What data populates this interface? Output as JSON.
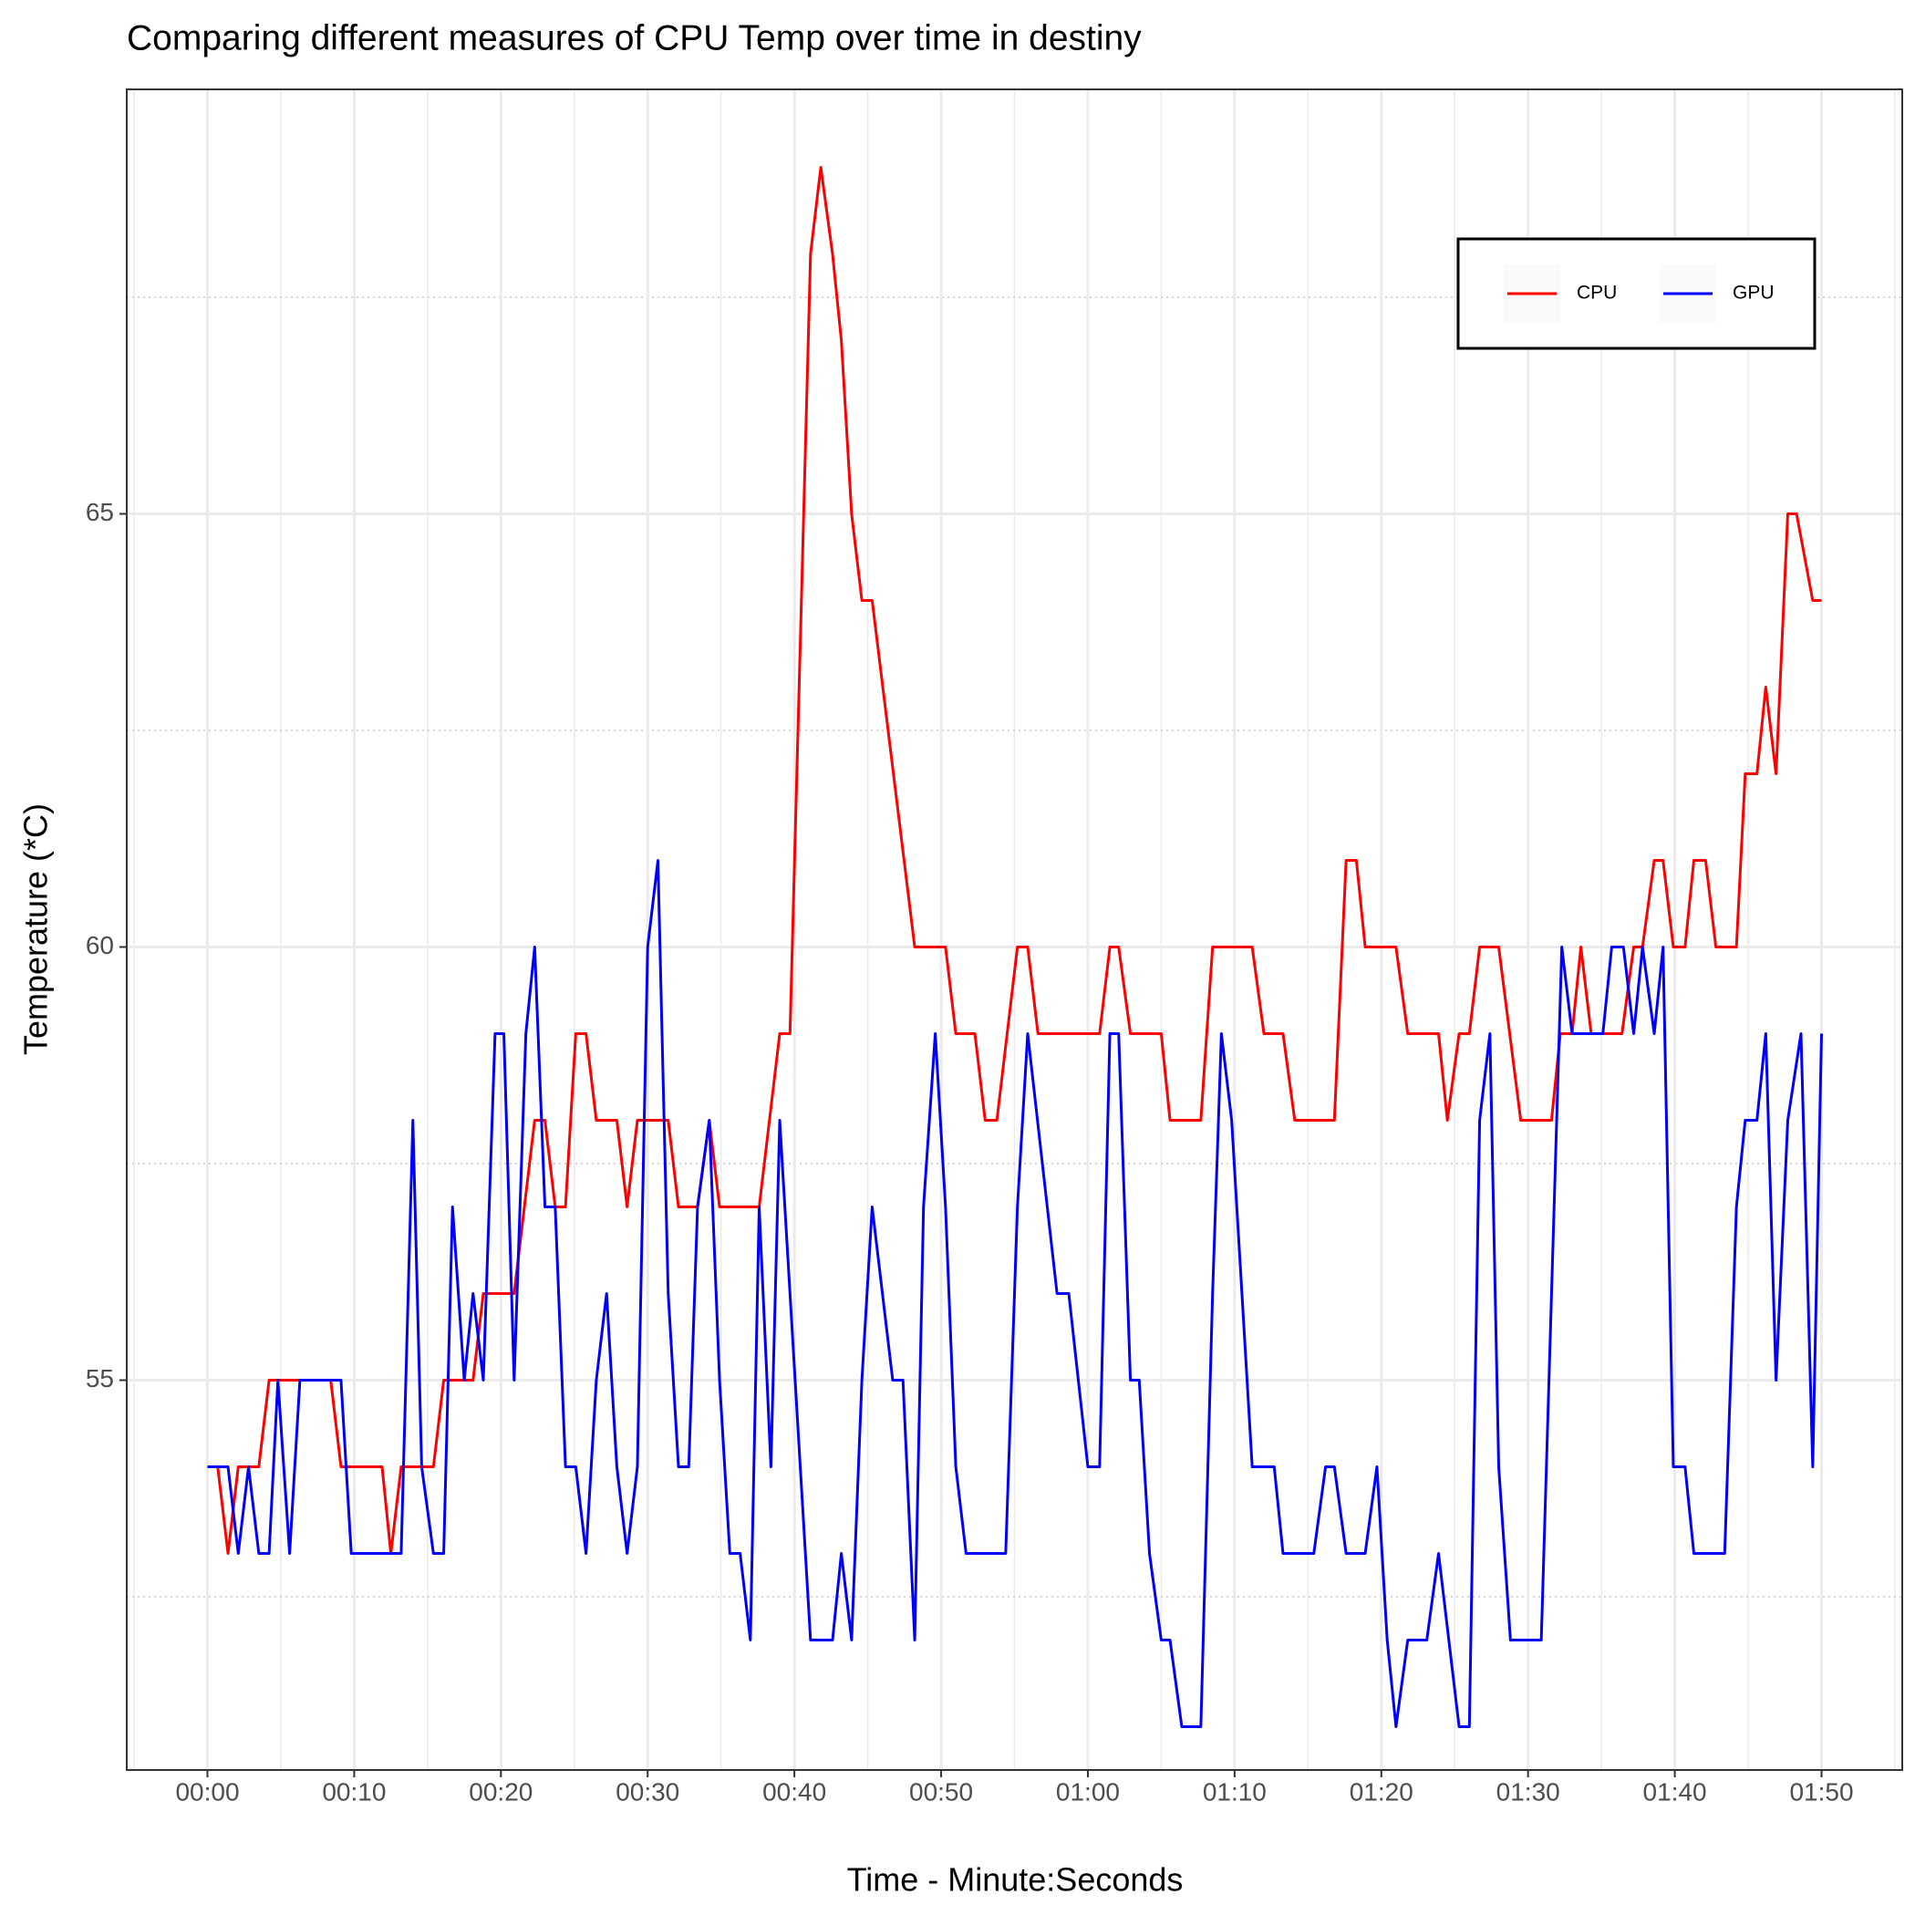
{
  "chart_data": {
    "type": "line",
    "title": "Comparing different measures of CPU Temp over time in destiny",
    "x_label": "Time - Minute:Seconds",
    "y_label": "Temperature (*C)",
    "xlim": [
      -5.5,
      115.5
    ],
    "ylim": [
      50.5,
      69.9
    ],
    "xticks": [
      {
        "value": 0,
        "label": "00:00"
      },
      {
        "value": 10,
        "label": "00:10"
      },
      {
        "value": 20,
        "label": "00:20"
      },
      {
        "value": 30,
        "label": "00:30"
      },
      {
        "value": 40,
        "label": "00:40"
      },
      {
        "value": 50,
        "label": "00:50"
      },
      {
        "value": 60,
        "label": "01:00"
      },
      {
        "value": 70,
        "label": "01:10"
      },
      {
        "value": 80,
        "label": "01:20"
      },
      {
        "value": 90,
        "label": "01:30"
      },
      {
        "value": 100,
        "label": "01:40"
      },
      {
        "value": 110,
        "label": "01:50"
      }
    ],
    "yticks": [
      55,
      60,
      65
    ],
    "grid": true,
    "legend_position": "top-right",
    "series": [
      {
        "name": "CPU",
        "color": "#ff0000",
        "x": [
          0,
          0.7,
          1.4,
          2.1,
          3.5,
          4.2,
          8.4,
          9.1,
          11.9,
          12.5,
          13.2,
          15.4,
          16.1,
          18.1,
          18.8,
          20.9,
          22.3,
          23.0,
          23.7,
          24.4,
          25.1,
          25.8,
          26.5,
          27.9,
          28.6,
          29.3,
          31.4,
          32.1,
          33.4,
          34.2,
          34.9,
          37.6,
          39.0,
          39.7,
          41.1,
          41.8,
          42.6,
          43.2,
          43.9,
          44.6,
          45.3,
          48.2,
          50.3,
          51.0,
          52.3,
          53.0,
          53.8,
          55.2,
          55.9,
          56.6,
          60.8,
          61.5,
          62.1,
          62.9,
          65.0,
          65.6,
          67.7,
          68.5,
          71.2,
          72.0,
          73.3,
          74.1,
          76.8,
          77.6,
          78.3,
          78.9,
          81.0,
          81.8,
          83.9,
          84.5,
          85.3,
          86.0,
          86.7,
          88.0,
          89.5,
          91.6,
          92.2,
          93.0,
          93.6,
          94.3,
          96.4,
          97.2,
          97.8,
          98.6,
          99.2,
          99.9,
          100.7,
          101.3,
          102.1,
          102.8,
          104.2,
          104.8,
          105.6,
          106.2,
          106.9,
          107.7,
          108.3,
          109.4,
          110
        ],
        "values": [
          54,
          54,
          53,
          54,
          54,
          55,
          55,
          54,
          54,
          53,
          54,
          54,
          55,
          55,
          56,
          56,
          58,
          58,
          57,
          57,
          59,
          59,
          58,
          58,
          57,
          58,
          58,
          57,
          57,
          58,
          57,
          57,
          59,
          59,
          68,
          69,
          68,
          67,
          65,
          64,
          64,
          60,
          60,
          59,
          59,
          58,
          58,
          60,
          60,
          59,
          59,
          60,
          60,
          59,
          59,
          58,
          58,
          60,
          60,
          59,
          59,
          58,
          58,
          61,
          61,
          60,
          60,
          59,
          59,
          58,
          59,
          59,
          60,
          60,
          58,
          58,
          59,
          59,
          60,
          59,
          59,
          60,
          60,
          61,
          61,
          60,
          60,
          61,
          61,
          60,
          60,
          62,
          62,
          63,
          62,
          65,
          65,
          64,
          64
        ]
      },
      {
        "name": "GPU",
        "color": "#0000ff",
        "x": [
          0,
          1.4,
          2.1,
          2.8,
          3.5,
          4.2,
          4.8,
          5.6,
          6.3,
          9.1,
          9.8,
          13.2,
          14.0,
          14.6,
          15.4,
          16.1,
          16.7,
          17.5,
          18.1,
          18.8,
          19.6,
          20.2,
          20.9,
          21.7,
          22.3,
          23.0,
          23.7,
          24.4,
          25.1,
          25.8,
          26.5,
          27.2,
          27.9,
          28.6,
          29.3,
          30.0,
          30.7,
          31.4,
          32.1,
          32.8,
          33.4,
          34.2,
          34.9,
          35.6,
          36.3,
          37.0,
          37.6,
          38.4,
          39.0,
          41.1,
          42.6,
          43.2,
          43.9,
          44.6,
          45.3,
          46.7,
          47.4,
          48.2,
          48.8,
          49.6,
          50.3,
          51.0,
          51.7,
          54.4,
          55.2,
          55.9,
          57.9,
          58.7,
          60.0,
          60.8,
          61.5,
          62.1,
          62.9,
          63.5,
          64.2,
          65.0,
          65.6,
          66.4,
          67.7,
          68.5,
          69.1,
          69.8,
          71.2,
          72.7,
          73.3,
          75.4,
          76.2,
          76.8,
          77.6,
          78.9,
          79.7,
          80.4,
          81.0,
          81.8,
          83.1,
          83.9,
          85.3,
          86.0,
          86.7,
          87.4,
          88.0,
          88.8,
          90.9,
          92.3,
          93.0,
          95.1,
          95.7,
          96.5,
          97.2,
          97.8,
          98.6,
          99.2,
          99.9,
          100.7,
          101.3,
          103.4,
          104.2,
          104.8,
          105.6,
          106.2,
          106.9,
          107.7,
          108.6,
          109.4,
          110
        ],
        "values": [
          54,
          54,
          53,
          54,
          53,
          53,
          55,
          53,
          55,
          55,
          53,
          53,
          58,
          54,
          53,
          53,
          57,
          55,
          56,
          55,
          59,
          59,
          55,
          59,
          60,
          57,
          57,
          54,
          54,
          53,
          55,
          56,
          54,
          53,
          54,
          60,
          61,
          56,
          54,
          54,
          57,
          58,
          55,
          53,
          53,
          52,
          57,
          54,
          58,
          52,
          52,
          53,
          52,
          55,
          57,
          55,
          55,
          52,
          57,
          59,
          57,
          54,
          53,
          53,
          57,
          59,
          56,
          56,
          54,
          54,
          59,
          59,
          55,
          55,
          53,
          52,
          52,
          51,
          51,
          56,
          59,
          58,
          54,
          54,
          53,
          53,
          54,
          54,
          53,
          53,
          54,
          52,
          51,
          52,
          52,
          53,
          51,
          51,
          58,
          59,
          54,
          52,
          52,
          60,
          59,
          59,
          60,
          60,
          59,
          60,
          59,
          60,
          54,
          54,
          53,
          53,
          57,
          58,
          58,
          59,
          55,
          58,
          59,
          54,
          59
        ]
      }
    ]
  }
}
